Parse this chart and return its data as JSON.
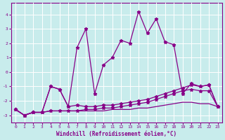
{
  "xlabel": "Windchill (Refroidissement éolien,°C)",
  "xlim": [
    -0.5,
    23.5
  ],
  "ylim": [
    -3.5,
    4.8
  ],
  "yticks": [
    -3,
    -2,
    -1,
    0,
    1,
    2,
    3,
    4
  ],
  "xticks": [
    0,
    1,
    2,
    3,
    4,
    5,
    6,
    7,
    8,
    9,
    10,
    11,
    12,
    13,
    14,
    15,
    16,
    17,
    18,
    19,
    20,
    21,
    22,
    23
  ],
  "background_color": "#c8ecec",
  "grid_color": "#b0d0d0",
  "line_color": "#880088",
  "line1_y": [
    -2.6,
    -3.0,
    -2.8,
    -2.8,
    -1.0,
    -1.2,
    -2.4,
    1.7,
    3.0,
    -1.5,
    0.5,
    1.0,
    2.2,
    2.0,
    4.2,
    2.7,
    3.7,
    2.1,
    1.9,
    -1.5,
    -0.8,
    -1.0,
    -0.9,
    -2.4
  ],
  "line2_y": [
    -2.6,
    -3.0,
    -2.8,
    -2.8,
    -1.0,
    -1.2,
    -2.4,
    -2.3,
    -2.4,
    -2.4,
    -2.3,
    -2.3,
    -2.2,
    -2.1,
    -2.0,
    -1.9,
    -1.7,
    -1.5,
    -1.3,
    -1.1,
    -0.9,
    -1.0,
    -0.9,
    -2.4
  ],
  "line3_y": [
    -2.6,
    -3.0,
    -2.8,
    -2.8,
    -2.7,
    -2.7,
    -2.7,
    -2.7,
    -2.6,
    -2.6,
    -2.5,
    -2.5,
    -2.4,
    -2.3,
    -2.2,
    -2.1,
    -1.9,
    -1.7,
    -1.5,
    -1.3,
    -1.2,
    -1.3,
    -1.3,
    -2.4
  ],
  "line4_y": [
    -2.6,
    -3.0,
    -2.8,
    -2.8,
    -2.7,
    -2.7,
    -2.7,
    -2.7,
    -2.7,
    -2.7,
    -2.7,
    -2.6,
    -2.6,
    -2.6,
    -2.5,
    -2.5,
    -2.4,
    -2.3,
    -2.2,
    -2.1,
    -2.1,
    -2.2,
    -2.2,
    -2.4
  ]
}
